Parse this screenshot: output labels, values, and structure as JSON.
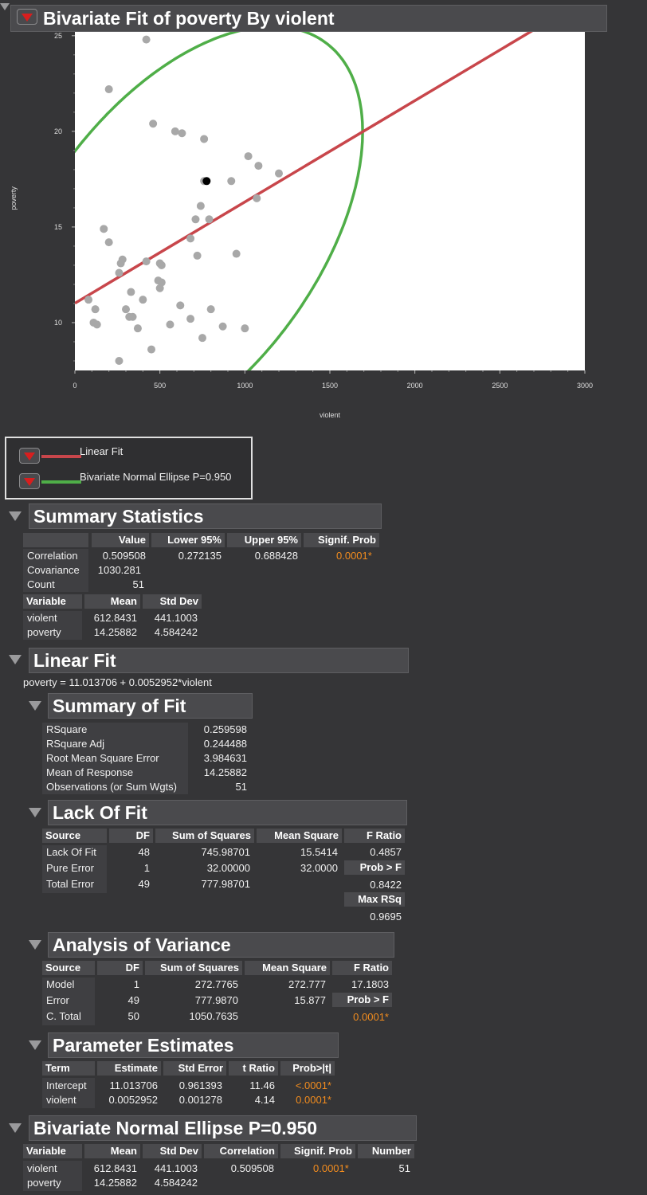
{
  "title": "Bivariate Fit of poverty By violent",
  "chart_data": {
    "type": "scatter",
    "xlabel": "violent",
    "ylabel": "poverty",
    "xlim": [
      0,
      3000
    ],
    "ylim": [
      7.5,
      25.2
    ],
    "x_ticks": [
      0,
      500,
      1000,
      1500,
      2000,
      2500,
      3000
    ],
    "y_ticks": [
      10,
      15,
      20,
      25
    ],
    "points": [
      {
        "x": 420,
        "y": 24.8
      },
      {
        "x": 200,
        "y": 22.2
      },
      {
        "x": 460,
        "y": 20.4
      },
      {
        "x": 590,
        "y": 20.0
      },
      {
        "x": 630,
        "y": 19.9
      },
      {
        "x": 760,
        "y": 19.6
      },
      {
        "x": 1020,
        "y": 18.7
      },
      {
        "x": 1080,
        "y": 18.2
      },
      {
        "x": 1200,
        "y": 17.8
      },
      {
        "x": 920,
        "y": 17.4
      },
      {
        "x": 760,
        "y": 17.4
      },
      {
        "x": 1070,
        "y": 16.5
      },
      {
        "x": 740,
        "y": 16.1
      },
      {
        "x": 710,
        "y": 15.4
      },
      {
        "x": 790,
        "y": 15.4
      },
      {
        "x": 170,
        "y": 14.9
      },
      {
        "x": 200,
        "y": 14.2
      },
      {
        "x": 680,
        "y": 14.4
      },
      {
        "x": 720,
        "y": 13.5
      },
      {
        "x": 950,
        "y": 13.6
      },
      {
        "x": 280,
        "y": 13.3
      },
      {
        "x": 270,
        "y": 13.1
      },
      {
        "x": 420,
        "y": 13.2
      },
      {
        "x": 500,
        "y": 13.1
      },
      {
        "x": 510,
        "y": 13.0
      },
      {
        "x": 260,
        "y": 12.6
      },
      {
        "x": 490,
        "y": 12.2
      },
      {
        "x": 510,
        "y": 12.1
      },
      {
        "x": 500,
        "y": 11.8
      },
      {
        "x": 330,
        "y": 11.6
      },
      {
        "x": 400,
        "y": 11.2
      },
      {
        "x": 80,
        "y": 11.2
      },
      {
        "x": 620,
        "y": 10.9
      },
      {
        "x": 120,
        "y": 10.7
      },
      {
        "x": 300,
        "y": 10.7
      },
      {
        "x": 800,
        "y": 10.7
      },
      {
        "x": 320,
        "y": 10.3
      },
      {
        "x": 340,
        "y": 10.3
      },
      {
        "x": 680,
        "y": 10.2
      },
      {
        "x": 110,
        "y": 10.0
      },
      {
        "x": 130,
        "y": 9.9
      },
      {
        "x": 560,
        "y": 9.9
      },
      {
        "x": 370,
        "y": 9.7
      },
      {
        "x": 870,
        "y": 9.8
      },
      {
        "x": 1000,
        "y": 9.7
      },
      {
        "x": 750,
        "y": 9.2
      },
      {
        "x": 450,
        "y": 8.6
      },
      {
        "x": 260,
        "y": 8.0
      }
    ],
    "selected_point": {
      "x": 775,
      "y": 17.4
    },
    "linear_fit": {
      "intercept": 11.013706,
      "slope": 0.0052952,
      "color": "#c8464b"
    },
    "ellipse": {
      "mean_x": 612.8431,
      "mean_y": 14.25882,
      "sd_x": 441.1003,
      "sd_y": 4.584242,
      "r": 0.509508,
      "p": 0.95,
      "color": "#4fae48"
    }
  },
  "legend": {
    "linear_fit": "Linear Fit",
    "ellipse": "Bivariate Normal Ellipse P=0.950"
  },
  "summary": {
    "title": "Summary Statistics",
    "cols": [
      "Value",
      "Lower 95%",
      "Upper 95%",
      "Signif. Prob"
    ],
    "correlation": {
      "label": "Correlation",
      "value": "0.509508",
      "lower": "0.272135",
      "upper": "0.688428",
      "prob": "0.0001*"
    },
    "covariance": {
      "label": "Covariance",
      "value": "1030.281"
    },
    "count": {
      "label": "Count",
      "value": "51"
    },
    "vcols": [
      "Variable",
      "Mean",
      "Std Dev"
    ],
    "rows": [
      {
        "name": "violent",
        "mean": "612.8431",
        "sd": "441.1003"
      },
      {
        "name": "poverty",
        "mean": "14.25882",
        "sd": "4.584242"
      }
    ]
  },
  "linear": {
    "title": "Linear Fit",
    "equation": "poverty = 11.013706 + 0.0052952*violent"
  },
  "fit": {
    "title": "Summary of Fit",
    "rows": [
      {
        "label": "RSquare",
        "value": "0.259598"
      },
      {
        "label": "RSquare Adj",
        "value": "0.244488"
      },
      {
        "label": "Root Mean Square Error",
        "value": "3.984631"
      },
      {
        "label": "Mean of Response",
        "value": "14.25882"
      },
      {
        "label": "Observations (or Sum Wgts)",
        "value": "51"
      }
    ]
  },
  "lof": {
    "title": "Lack Of Fit",
    "cols": [
      "Source",
      "DF",
      "Sum of Squares",
      "Mean Square",
      "F Ratio"
    ],
    "rows": [
      {
        "src": "Lack Of Fit",
        "df": "48",
        "ss": "745.98701",
        "ms": "15.5414",
        "f": "0.4857"
      },
      {
        "src": "Pure Error",
        "df": "1",
        "ss": "32.00000",
        "ms": "32.0000"
      },
      {
        "src": "Total Error",
        "df": "49",
        "ss": "777.98701"
      }
    ],
    "probf_label": "Prob > F",
    "probf": "0.8422",
    "maxrsq_label": "Max RSq",
    "maxrsq": "0.9695"
  },
  "anova": {
    "title": "Analysis of Variance",
    "cols": [
      "Source",
      "DF",
      "Sum of Squares",
      "Mean Square",
      "F Ratio"
    ],
    "rows": [
      {
        "src": "Model",
        "df": "1",
        "ss": "272.7765",
        "ms": "272.777",
        "f": "17.1803"
      },
      {
        "src": "Error",
        "df": "49",
        "ss": "777.9870",
        "ms": "15.877"
      },
      {
        "src": "C. Total",
        "df": "50",
        "ss": "1050.7635"
      }
    ],
    "probf_label": "Prob > F",
    "probf": "0.0001*"
  },
  "params": {
    "title": "Parameter Estimates",
    "cols": [
      "Term",
      "Estimate",
      "Std Error",
      "t Ratio",
      "Prob>|t|"
    ],
    "rows": [
      {
        "term": "Intercept",
        "est": "11.013706",
        "se": "0.961393",
        "t": "11.46",
        "p": "<.0001*"
      },
      {
        "term": "violent",
        "est": "0.0052952",
        "se": "0.001278",
        "t": "4.14",
        "p": "0.0001*"
      }
    ]
  },
  "ellipse_tbl": {
    "title": "Bivariate Normal Ellipse P=0.950",
    "cols": [
      "Variable",
      "Mean",
      "Std Dev",
      "Correlation",
      "Signif. Prob",
      "Number"
    ],
    "rows": [
      {
        "name": "violent",
        "mean": "612.8431",
        "sd": "441.1003",
        "corr": "0.509508",
        "prob": "0.0001*",
        "n": "51"
      },
      {
        "name": "poverty",
        "mean": "14.25882",
        "sd": "4.584242"
      }
    ]
  }
}
